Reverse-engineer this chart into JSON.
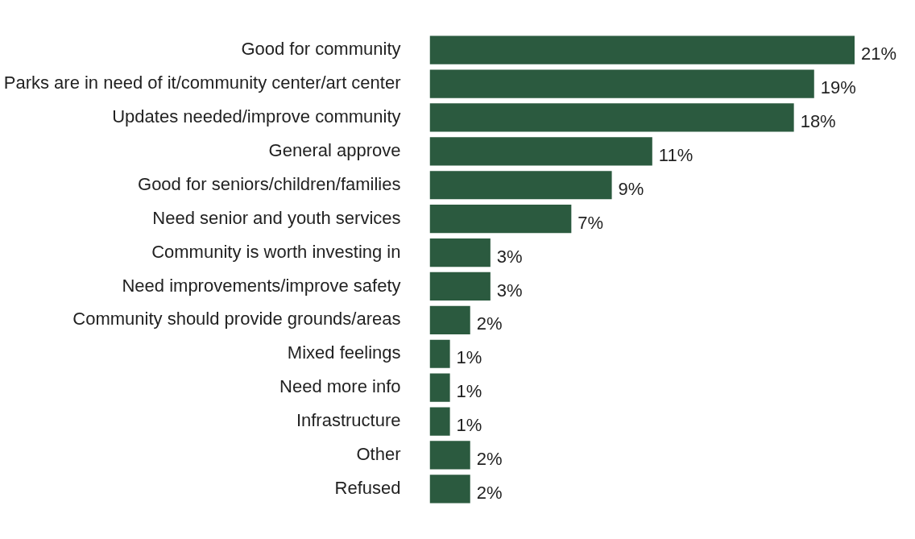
{
  "chart_data": {
    "type": "bar",
    "orientation": "horizontal",
    "categories": [
      "Good for community",
      "Parks are in need of it/community center/art center",
      "Updates needed/improve community",
      "General approve",
      "Good for seniors/children/families",
      "Need senior and youth services",
      "Community is worth investing in",
      "Need improvements/improve safety",
      "Community should provide grounds/areas",
      "Mixed feelings",
      "Need more info",
      "Infrastructure",
      "Other",
      "Refused"
    ],
    "values": [
      21,
      19,
      18,
      11,
      9,
      7,
      3,
      3,
      2,
      1,
      1,
      1,
      2,
      2
    ],
    "value_labels": [
      "21%",
      "19%",
      "18%",
      "11%",
      "9%",
      "7%",
      "3%",
      "3%",
      "2%",
      "1%",
      "1%",
      "1%",
      "2%",
      "2%"
    ],
    "color": "#2b5a3f"
  }
}
